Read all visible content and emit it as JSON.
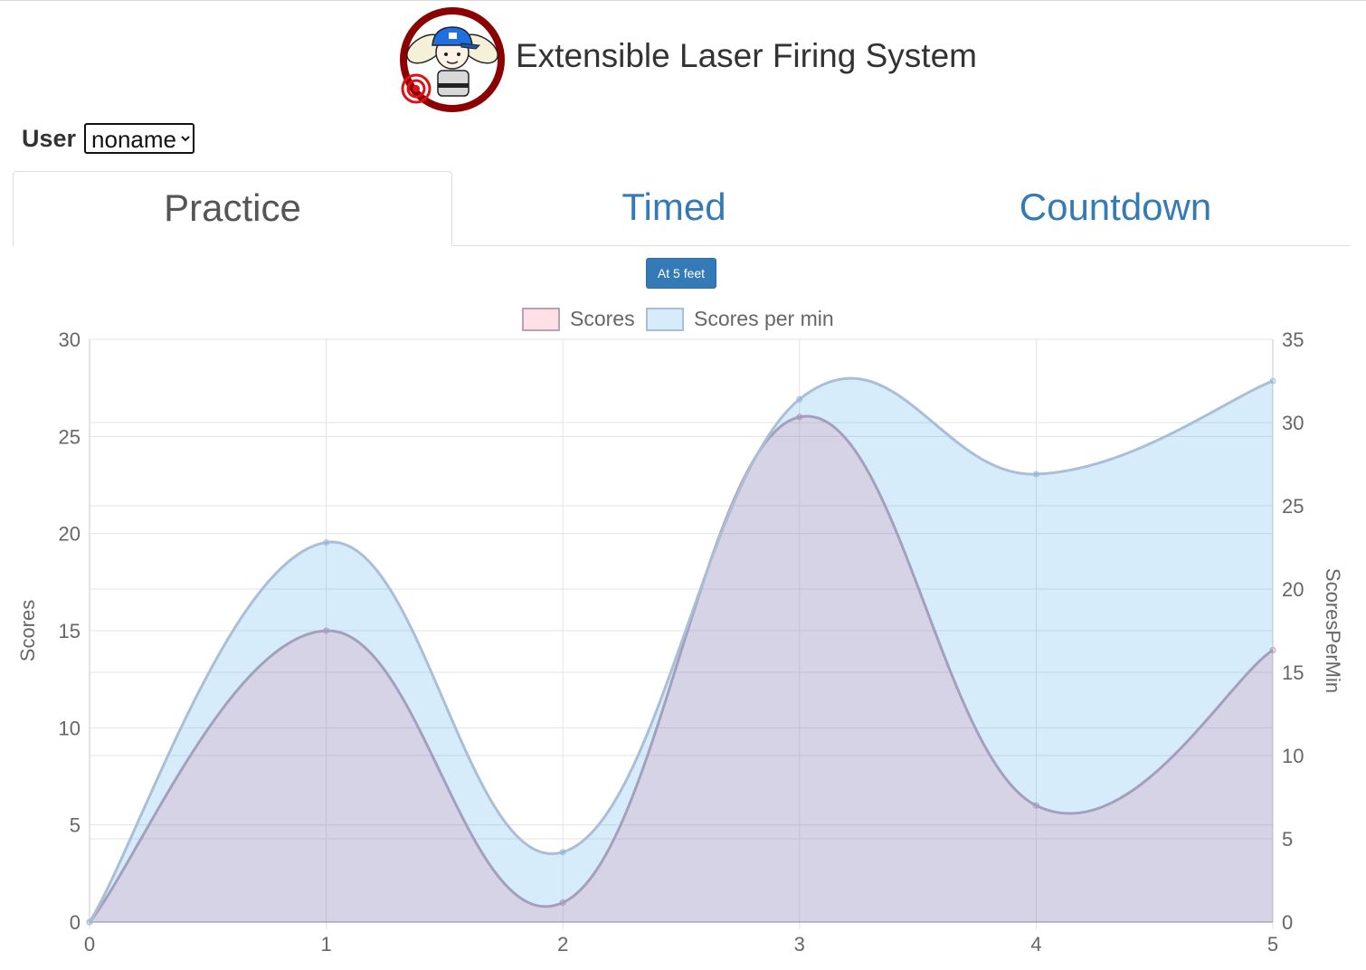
{
  "header": {
    "title": "Extensible Laser Firing System"
  },
  "user": {
    "label": "User",
    "selected": "noname"
  },
  "tabs": [
    {
      "label": "Practice",
      "active": true
    },
    {
      "label": "Timed",
      "active": false
    },
    {
      "label": "Countdown",
      "active": false
    }
  ],
  "distance_button": {
    "label": "At 5 feet"
  },
  "colors": {
    "link": "#337ab7",
    "scores_fill": "rgba(255,99,132,0.2)",
    "scores_line": "rgba(190,160,180,1)",
    "spm_fill": "rgba(54,162,235,0.2)",
    "spm_line": "rgba(170,190,215,1)"
  },
  "chart_data": {
    "type": "area",
    "x": [
      0,
      1,
      2,
      3,
      4,
      5
    ],
    "series": [
      {
        "name": "Scores",
        "axis": "left",
        "values": [
          0,
          15,
          1,
          26,
          6,
          14
        ]
      },
      {
        "name": "Scores per min",
        "axis": "right",
        "values": [
          0,
          22.8,
          4.2,
          31.4,
          26.9,
          32.5
        ]
      }
    ],
    "ylabel": "Scores",
    "y2label": "ScoresPerMin",
    "ylim": [
      0,
      30
    ],
    "y2lim": [
      0,
      35
    ],
    "yticks": [
      "0",
      "5",
      "10",
      "15",
      "20",
      "25",
      "30"
    ],
    "y2ticks": [
      "0",
      "5",
      "10",
      "15",
      "20",
      "25",
      "30",
      "35"
    ],
    "xticks": [
      "0",
      "1",
      "2",
      "3",
      "4",
      "5"
    ],
    "grid": true,
    "legend": "top"
  }
}
